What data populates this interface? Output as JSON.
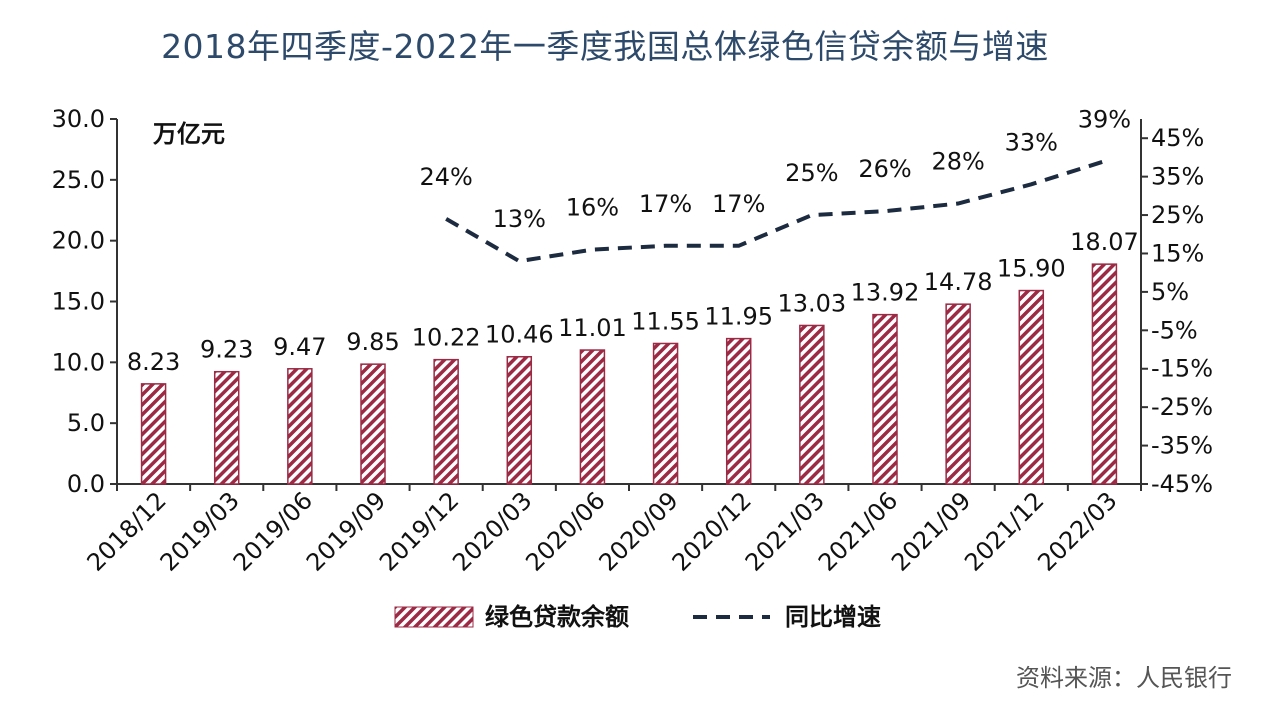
{
  "title": "2018年四季度-2022年一季度我国总体绿色信贷余额与增速",
  "source": "资料来源：人民银行",
  "chart_data": {
    "type": "bar",
    "categories": [
      "2018/12",
      "2019/03",
      "2019/06",
      "2019/09",
      "2019/12",
      "2020/03",
      "2020/06",
      "2020/09",
      "2020/12",
      "2021/03",
      "2021/06",
      "2021/09",
      "2021/12",
      "2022/03"
    ],
    "y_unit": "万亿元",
    "ylim": [
      0,
      30
    ],
    "yticks": [
      "0.0",
      "5.0",
      "10.0",
      "15.0",
      "20.0",
      "25.0",
      "30.0"
    ],
    "y2lim": [
      -45,
      50
    ],
    "y2ticks": [
      "-45%",
      "-35%",
      "-25%",
      "-15%",
      "-5%",
      "5%",
      "15%",
      "25%",
      "35%",
      "45%"
    ],
    "series": [
      {
        "name": "绿色贷款余额",
        "kind": "bar",
        "axis": "left",
        "values": [
          8.23,
          9.23,
          9.47,
          9.85,
          10.22,
          10.46,
          11.01,
          11.55,
          11.95,
          13.03,
          13.92,
          14.78,
          15.9,
          18.07
        ],
        "labels": [
          "8.23",
          "9.23",
          "9.47",
          "9.85",
          "10.22",
          "10.46",
          "11.01",
          "11.55",
          "11.95",
          "13.03",
          "13.92",
          "14.78",
          "15.90",
          "18.07"
        ],
        "color": "#9c2a45"
      },
      {
        "name": "同比增速",
        "kind": "line",
        "axis": "right",
        "style": "dashed",
        "values": [
          null,
          null,
          null,
          null,
          24,
          13,
          16,
          17,
          17,
          25,
          26,
          28,
          33,
          39
        ],
        "labels": [
          null,
          null,
          null,
          null,
          "24%",
          "13%",
          "16%",
          "17%",
          "17%",
          "25%",
          "26%",
          "28%",
          "33%",
          "39%"
        ],
        "color": "#1c2b3f"
      }
    ],
    "grid": false,
    "legend_position": "bottom"
  }
}
